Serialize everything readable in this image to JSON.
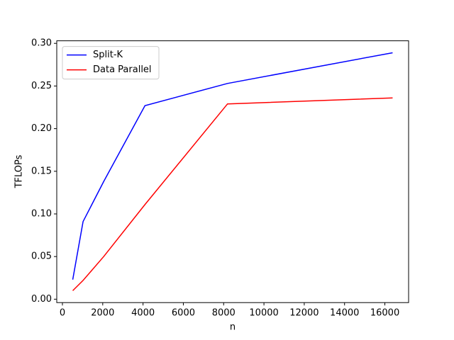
{
  "chart_data": {
    "type": "line",
    "x_label": "n",
    "y_label": "TFLOPs",
    "x": [
      512,
      1024,
      2048,
      4096,
      8192,
      16384
    ],
    "series": [
      {
        "name": "Split-K",
        "color": "#0000ff",
        "values": [
          0.023,
          0.091,
          0.138,
          0.227,
          0.253,
          0.289
        ]
      },
      {
        "name": "Data Parallel",
        "color": "#ff0000",
        "values": [
          0.01,
          0.022,
          0.05,
          0.111,
          0.229,
          0.236
        ]
      }
    ],
    "xlim": [
      -281.6,
      17177.6
    ],
    "xticks": [
      0,
      2000,
      4000,
      6000,
      8000,
      10000,
      12000,
      14000,
      16000
    ],
    "ylim": [
      -0.004,
      0.303
    ],
    "yticks": [
      {
        "value": 0,
        "label": "0.00"
      },
      0.05,
      {
        "value": 0.1,
        "label": "0.10"
      },
      0.15,
      {
        "value": 0.2,
        "label": "0.20"
      },
      0.25,
      {
        "value": 0.3,
        "label": "0.30"
      }
    ],
    "legend": "upper left"
  }
}
